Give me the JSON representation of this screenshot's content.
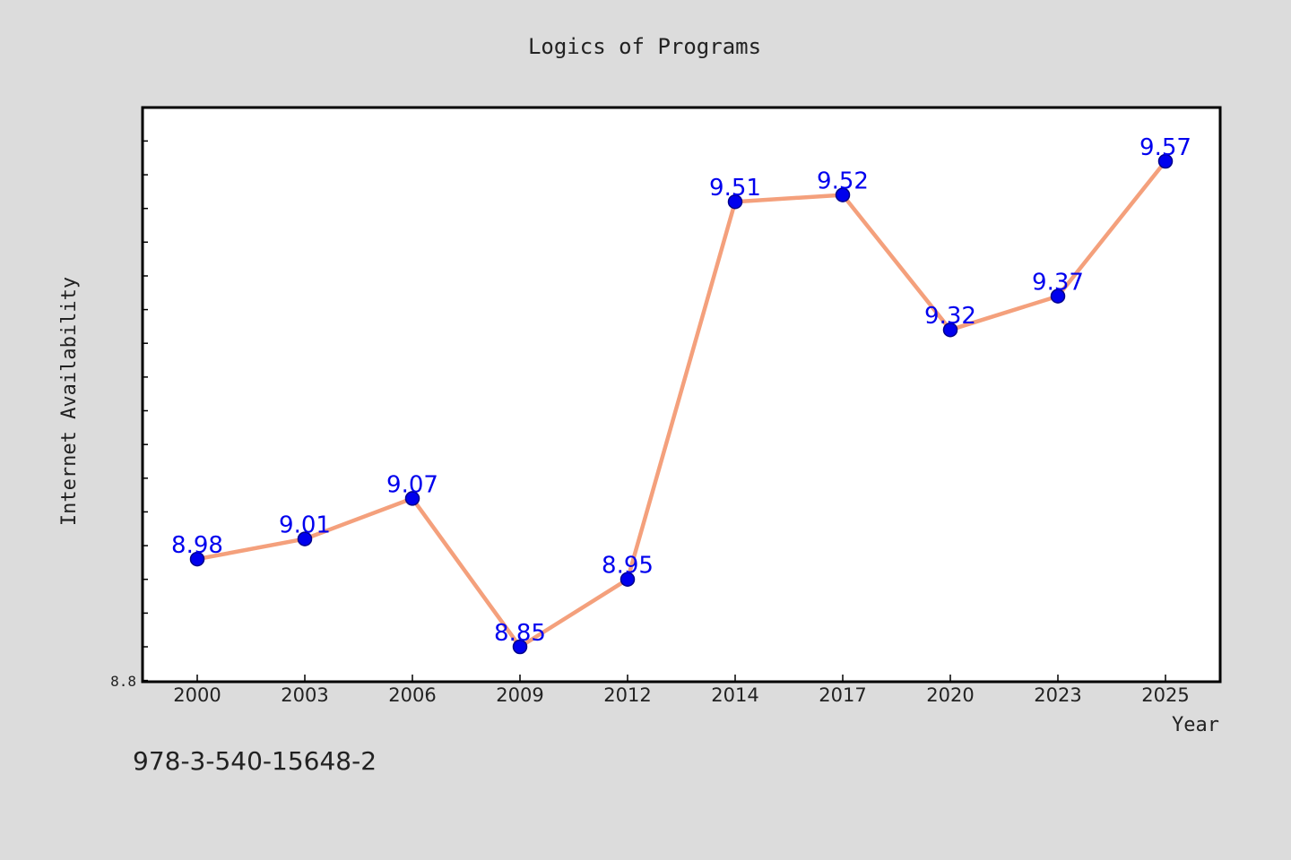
{
  "chart_data": {
    "type": "line",
    "title": "Logics of Programs",
    "xlabel": "Year",
    "ylabel": "Internet Availability",
    "categories": [
      "2000",
      "2003",
      "2006",
      "2009",
      "2012",
      "2014",
      "2017",
      "2020",
      "2023",
      "2025"
    ],
    "series": [
      {
        "values": [
          8.98,
          9.01,
          9.07,
          8.85,
          8.95,
          9.51,
          9.52,
          9.32,
          9.37,
          9.57
        ],
        "labels": [
          "8.98",
          "9.01",
          "9.07",
          "8.85",
          "8.95",
          "9.51",
          "9.52",
          "9.32",
          "9.37",
          "9.57"
        ]
      }
    ],
    "y_tick_labels": [
      "8.8"
    ],
    "ylim": [
      8.8,
      9.65
    ],
    "grid": false,
    "legend": "none",
    "colors": {
      "line": "#f4a07c",
      "marker_fill": "#0000ee",
      "marker_stroke": "#00008b",
      "data_label": "#0000ee",
      "plot_background": "#ffffff",
      "figure_background": "#dcdcdc"
    }
  },
  "footer": {
    "text": "978-3-540-15648-2"
  }
}
